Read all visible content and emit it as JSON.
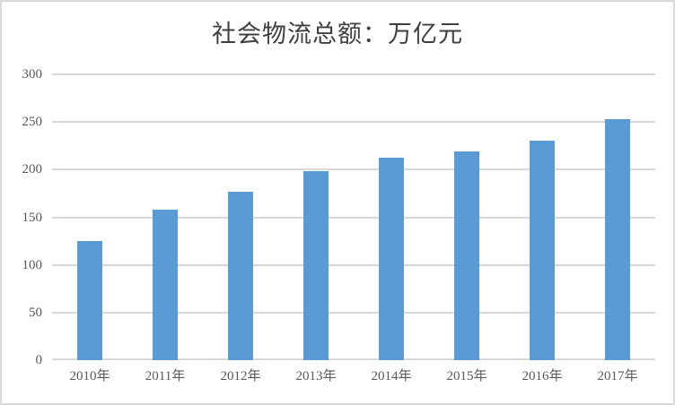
{
  "chart_data": {
    "type": "bar",
    "title": "社会物流总额：万亿元",
    "categories": [
      "2010年",
      "2011年",
      "2012年",
      "2013年",
      "2014年",
      "2015年",
      "2016年",
      "2017年"
    ],
    "values": [
      125,
      158,
      177,
      198,
      213,
      219,
      230,
      253
    ],
    "series_name": "社会物流总额",
    "xlabel": "",
    "ylabel": "",
    "ylim": [
      0,
      300
    ],
    "yticks": [
      0,
      50,
      100,
      150,
      200,
      250,
      300
    ],
    "grid": true,
    "legend_position": "none",
    "colors": {
      "bar": "#5B9BD5",
      "gridline": "#D9D9D9",
      "axis_line": "#D9D9D9",
      "tick_label": "#595959",
      "title": "#404040",
      "background": "#FFFFFF",
      "border": "#D9D9D9"
    }
  }
}
